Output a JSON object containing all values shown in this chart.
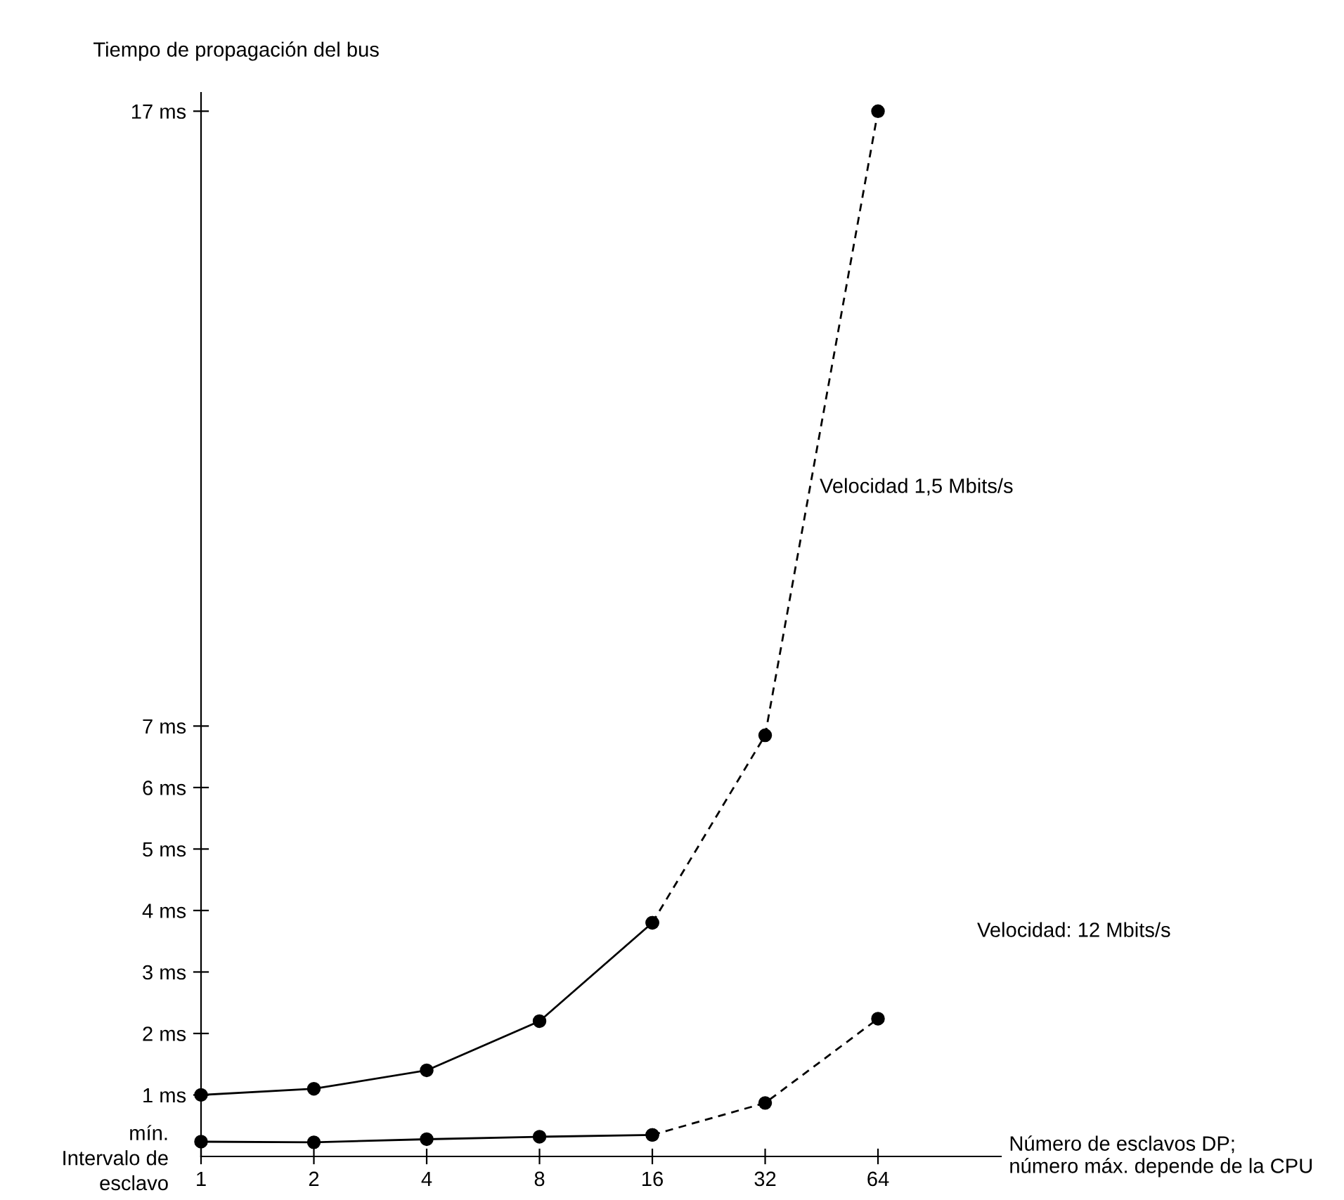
{
  "chart_data": {
    "type": "line",
    "xlabel": "Número de esclavos DP;\nnúmero máx. depende de la CPU",
    "ylabel": "Tiempo de propagación del bus",
    "categories": [
      "1",
      "2",
      "4",
      "8",
      "16",
      "32",
      "64"
    ],
    "series": [
      {
        "color": "#000000",
        "line_style": "solid",
        "marker": "circle",
        "values": [
          1.0,
          1.1,
          1.4,
          2.2,
          3.8,
          null,
          null
        ]
      },
      {
        "color": "#000000",
        "line_style": "dashed",
        "marker": "circle",
        "values": [
          null,
          null,
          null,
          null,
          3.8,
          6.85,
          17
        ]
      },
      {
        "color": "#000000",
        "line_style": "solid",
        "marker": "circle",
        "values": [
          0.24,
          0.23,
          0.28,
          0.32,
          0.35,
          null,
          null
        ]
      },
      {
        "color": "#000000",
        "line_style": "dashed",
        "marker": "circle",
        "values": [
          null,
          null,
          null,
          null,
          0.35,
          0.87,
          2.24
        ]
      }
    ],
    "ylim": [
      0,
      17.3
    ],
    "yticks": [
      {
        "value": 1,
        "label": "1 ms"
      },
      {
        "value": 2,
        "label": "2 ms"
      },
      {
        "value": 3,
        "label": "3 ms"
      },
      {
        "value": 4,
        "label": "4 ms"
      },
      {
        "value": 5,
        "label": "5 ms"
      },
      {
        "value": 6,
        "label": "6 ms"
      },
      {
        "value": 7,
        "label": "7 ms"
      },
      {
        "value": 17,
        "label": "17 ms"
      }
    ],
    "annotations": [
      "Velocidad 1,5 Mbits/s",
      "Velocidad: 12 Mbits/s",
      "mín.\nIntervalo de\nesclavo"
    ]
  }
}
